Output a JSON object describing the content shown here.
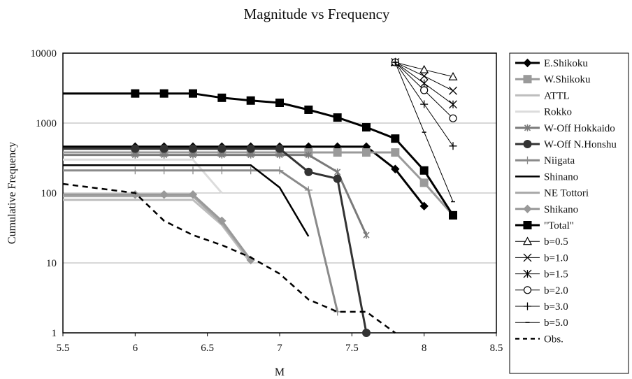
{
  "chart_data": {
    "type": "line",
    "title": "Magnitude vs Frequency",
    "xlabel": "M",
    "ylabel": "Cumulative Frequency",
    "xlim": [
      5.5,
      8.5
    ],
    "ylim": [
      1,
      10000
    ],
    "yscale": "log",
    "xticks": [
      "5.5",
      "6",
      "6.5",
      "7",
      "7.5",
      "8",
      "8.5"
    ],
    "yticks": [
      "1",
      "10",
      "100",
      "1000",
      "10000"
    ],
    "grid": "horizontal",
    "legend": "right",
    "series": [
      {
        "name": "E.Shikoku",
        "color": "#000000",
        "width": 3,
        "marker": "diamond",
        "x": [
          5.5,
          6,
          6.2,
          6.4,
          6.6,
          6.8,
          7,
          7.2,
          7.4,
          7.6,
          7.8,
          8
        ],
        "y": [
          460,
          460,
          460,
          460,
          460,
          460,
          460,
          460,
          460,
          460,
          220,
          65
        ]
      },
      {
        "name": "W.Shikoku",
        "color": "#9a9a9a",
        "width": 3,
        "marker": "square",
        "x": [
          5.5,
          6,
          6.2,
          6.4,
          6.6,
          6.8,
          7,
          7.2,
          7.4,
          7.6,
          7.8,
          8,
          8.2
        ],
        "y": [
          380,
          380,
          380,
          380,
          380,
          380,
          380,
          380,
          380,
          380,
          380,
          140,
          48
        ]
      },
      {
        "name": "ATTL",
        "color": "#bdbdbd",
        "width": 3,
        "marker": "none",
        "x": [
          5.5,
          6,
          6.2,
          6.4,
          6.6,
          6.8
        ],
        "y": [
          80,
          80,
          80,
          80,
          35,
          10
        ]
      },
      {
        "name": "Rokko",
        "color": "#dcdcdc",
        "width": 3,
        "marker": "none",
        "x": [
          5.5,
          6,
          6.2,
          6.4,
          6.6
        ],
        "y": [
          300,
          300,
          300,
          300,
          100
        ]
      },
      {
        "name": "W-Off Hokkaido",
        "color": "#7a7a7a",
        "width": 3,
        "marker": "asterisk",
        "x": [
          5.5,
          6,
          6.2,
          6.4,
          6.6,
          6.8,
          7,
          7.2,
          7.4,
          7.6
        ],
        "y": [
          350,
          350,
          350,
          350,
          350,
          350,
          350,
          350,
          200,
          25
        ]
      },
      {
        "name": "W-Off N.Honshu",
        "color": "#333333",
        "width": 3,
        "marker": "circle",
        "x": [
          5.5,
          6,
          6.2,
          6.4,
          6.6,
          6.8,
          7,
          7.2,
          7.4,
          7.6
        ],
        "y": [
          430,
          430,
          430,
          430,
          430,
          430,
          430,
          200,
          160,
          1
        ]
      },
      {
        "name": "Niigata",
        "color": "#8a8a8a",
        "width": 3,
        "marker": "plus",
        "x": [
          5.5,
          6,
          6.2,
          6.4,
          6.6,
          6.8,
          7,
          7.2,
          7.4
        ],
        "y": [
          210,
          210,
          210,
          210,
          210,
          210,
          210,
          110,
          2
        ]
      },
      {
        "name": "Shinano",
        "color": "#000000",
        "width": 2.5,
        "marker": "none",
        "x": [
          5.5,
          6,
          6.2,
          6.4,
          6.6,
          6.8,
          7,
          7.2
        ],
        "y": [
          250,
          250,
          250,
          250,
          250,
          250,
          120,
          24
        ]
      },
      {
        "name": "NE Tottori",
        "color": "#a8a8a8",
        "width": 3,
        "marker": "none",
        "x": [
          5.5,
          6,
          6.2,
          6.4,
          6.6,
          6.8
        ],
        "y": [
          90,
          90,
          90,
          90,
          37,
          11
        ]
      },
      {
        "name": "Shikano",
        "color": "#999999",
        "width": 3,
        "marker": "diamond",
        "x": [
          5.5,
          6,
          6.2,
          6.4,
          6.6,
          6.8
        ],
        "y": [
          95,
          95,
          95,
          95,
          40,
          11
        ]
      },
      {
        "name": "\"Total\"",
        "color": "#000000",
        "width": 3,
        "marker": "square",
        "x": [
          5.5,
          6,
          6.2,
          6.4,
          6.6,
          6.8,
          7,
          7.2,
          7.4,
          7.6,
          7.8,
          8,
          8.2
        ],
        "y": [
          2650,
          2650,
          2650,
          2650,
          2300,
          2100,
          1950,
          1550,
          1200,
          870,
          600,
          210,
          48
        ]
      },
      {
        "name": "b=0.5",
        "color": "#000000",
        "width": 1,
        "marker": "triangle",
        "x": [
          7.8,
          8,
          8.2
        ],
        "y": [
          7400,
          5800,
          4600
        ]
      },
      {
        "name": "b=1.0",
        "color": "#000000",
        "width": 1,
        "marker": "x",
        "x": [
          7.8,
          8,
          8.2
        ],
        "y": [
          7400,
          4700,
          2900
        ]
      },
      {
        "name": "b=1.5",
        "color": "#000000",
        "width": 1,
        "marker": "star",
        "x": [
          7.8,
          8,
          8.2
        ],
        "y": [
          7400,
          3700,
          1850
        ]
      },
      {
        "name": "b=2.0",
        "color": "#000000",
        "width": 1,
        "marker": "opencircle",
        "x": [
          7.8,
          8,
          8.2
        ],
        "y": [
          7400,
          2950,
          1170
        ]
      },
      {
        "name": "b=3.0",
        "color": "#000000",
        "width": 1,
        "marker": "plus",
        "x": [
          7.8,
          8,
          8.2
        ],
        "y": [
          7400,
          1860,
          470
        ]
      },
      {
        "name": "b=5.0",
        "color": "#000000",
        "width": 1,
        "marker": "dash",
        "x": [
          7.8,
          8,
          8.2
        ],
        "y": [
          7400,
          740,
          75
        ]
      },
      {
        "name": "Obs.",
        "color": "#000000",
        "width": 2.5,
        "dash": "8,6",
        "marker": "none",
        "x": [
          5.5,
          6,
          6.2,
          6.4,
          6.6,
          6.8,
          7,
          7.2,
          7.4,
          7.6,
          7.8
        ],
        "y": [
          135,
          100,
          40,
          25,
          18,
          12,
          7,
          3,
          2,
          2,
          1
        ]
      }
    ]
  }
}
